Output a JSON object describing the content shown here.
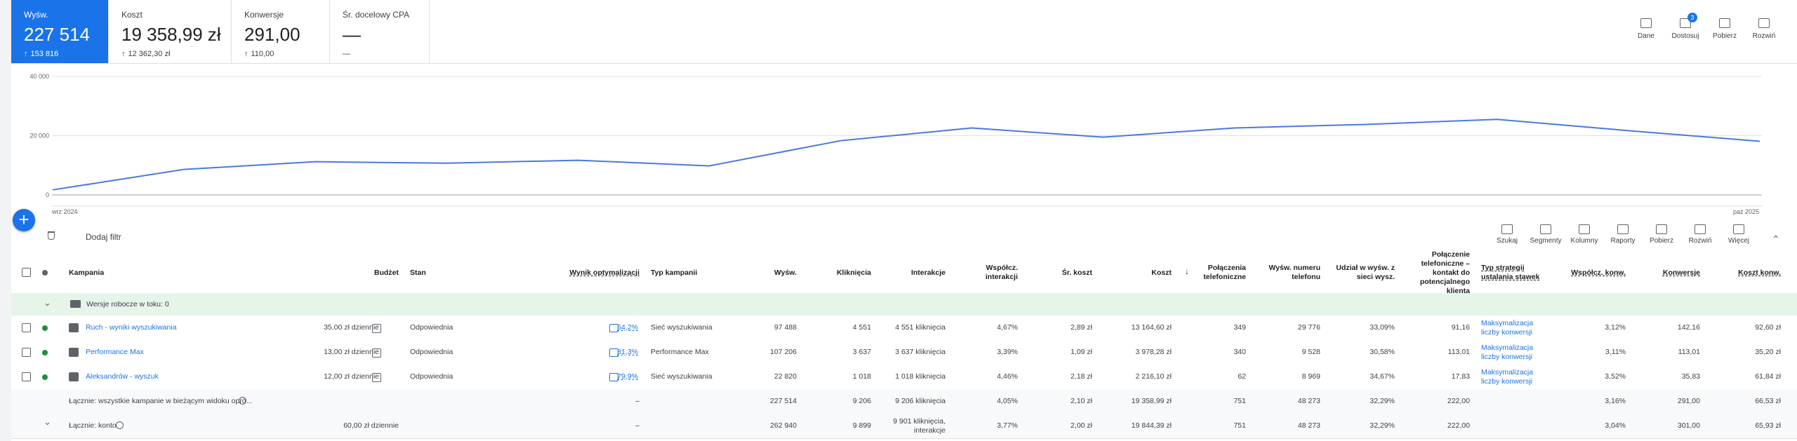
{
  "metrics": [
    {
      "label": "Wyśw.",
      "value": "227 514",
      "change": "153 816"
    },
    {
      "label": "Koszt",
      "value": "19 358,99 zł",
      "change": "12 362,30 zł"
    },
    {
      "label": "Konwersje",
      "value": "291,00",
      "change": "110,00"
    },
    {
      "label": "Śr. docelowy CPA",
      "value": "—",
      "change": "—"
    }
  ],
  "actions": [
    {
      "label": "Dane"
    },
    {
      "label": "Dostosuj",
      "badge": "3"
    },
    {
      "label": "Pobierz"
    },
    {
      "label": "Rozwiń"
    }
  ],
  "chart": {
    "type": "line",
    "categories": [
      "wrz 2024",
      null,
      null,
      null,
      null,
      null,
      null,
      null,
      null,
      null,
      null,
      null,
      null,
      "paź 2025"
    ],
    "values": [
      1700,
      8600,
      11200,
      10700,
      11700,
      9800,
      18300,
      22600,
      19500,
      22600,
      23800,
      25500,
      21700,
      18100
    ],
    "color": "#4a78e0",
    "ylim": [
      0,
      40000
    ],
    "yticks": [
      0,
      {
        "value": 20000,
        "label": "20 000"
      },
      {
        "value": 40000,
        "label": "40 000"
      }
    ],
    "grid": true
  },
  "toolbar": {
    "filter": "Dodaj filtr",
    "actions": [
      "Szukaj",
      "Segmenty",
      "Kolumny",
      "Raporty",
      "Pobierz",
      "Rozwiń",
      "Więcej"
    ]
  },
  "table": {
    "headers": {
      "name": "Kampania",
      "budget": "Budżet",
      "status": "Stan",
      "optimization": "Wynik optymalizacji",
      "type": "Typ kampanii",
      "impressions": "Wyśw.",
      "clicks": "Kliknięcia",
      "interactions": "Interakcje",
      "interaction_rate": "Współcz. interakcji",
      "avg_cost": "Śr. koszt",
      "cost": "Koszt",
      "calls": "Połączenia telefoniczne",
      "phone_impressions": "Wyśw. numeru telefonu",
      "share": "Udział w wyśw. z sieci wysz.",
      "phone_conversions": "Połączenie telefoniczne – kontakt do potencjalnego klienta",
      "strategy": "Typ strategii ustalania stawek",
      "conv_rate": "Współcz. konw.",
      "conversions": "Konwersje",
      "cost_per_conv": "Koszt konw."
    },
    "drafts": "Wersje robocze w toku: 0",
    "rows": [
      {
        "name": "Ruch - wyniki wyszukiwania",
        "budget": "35,00 zł dziennie",
        "status": "Odpowiednia",
        "optimization": "64,2%",
        "type": "Sieć wyszukiwania",
        "impressions": "97 488",
        "clicks": "4 551",
        "interactions": "4 551 kliknięcia",
        "interaction_rate": "4,67%",
        "avg_cost": "2,89 zł",
        "cost": "13 164,60 zł",
        "calls": "349",
        "phone_impressions": "29 776",
        "share": "33,09%",
        "phone_conversions": "91,16",
        "strategy": "Maksymalizacja liczby konwersji",
        "conv_rate": "3,12%",
        "conversions": "142,16",
        "cost_per_conv": "92,60 zł"
      },
      {
        "name": "Performance Max",
        "budget": "13,00 zł dziennie",
        "status": "Odpowiednia",
        "optimization": "81,3%",
        "type": "Performance Max",
        "impressions": "107 206",
        "clicks": "3 637",
        "interactions": "3 637 kliknięcia",
        "interaction_rate": "3,39%",
        "avg_cost": "1,09 zł",
        "cost": "3 978,28 zł",
        "calls": "340",
        "phone_impressions": "9 528",
        "share": "30,58%",
        "phone_conversions": "113,01",
        "strategy": "Maksymalizacja liczby konwersji",
        "conv_rate": "3,11%",
        "conversions": "113,01",
        "cost_per_conv": "35,20 zł"
      },
      {
        "name": "Aleksandrów - wyszuk",
        "budget": "12,00 zł dziennie",
        "status": "Odpowiednia",
        "optimization": "79,9%",
        "type": "Sieć wyszukiwania",
        "impressions": "22 820",
        "clicks": "1 018",
        "interactions": "1 018 kliknięcia",
        "interaction_rate": "4,46%",
        "avg_cost": "2,18 zł",
        "cost": "2 216,10 zł",
        "calls": "62",
        "phone_impressions": "8 969",
        "share": "34,67%",
        "phone_conversions": "17,83",
        "strategy": "Maksymalizacja liczby konwersji",
        "conv_rate": "3,52%",
        "conversions": "35,83",
        "cost_per_conv": "61,84 zł"
      }
    ],
    "totals": {
      "name": "Łącznie: wszystkie kampanie w bieżącym widoku opró...",
      "optimization": "–",
      "impressions": "227 514",
      "clicks": "9 206",
      "interactions": "9 206 kliknięcia",
      "interaction_rate": "4,05%",
      "avg_cost": "2,10 zł",
      "cost": "19 358,99 zł",
      "calls": "751",
      "phone_impressions": "48 273",
      "share": "32,29%",
      "phone_conversions": "222,00",
      "conv_rate": "3,16%",
      "conversions": "291,00",
      "cost_per_conv": "66,53 zł"
    },
    "account": {
      "name": "Łącznie: konto",
      "budget": "60,00 zł dziennie",
      "optimization": "–",
      "impressions": "262 940",
      "clicks": "9 899",
      "interactions": "9 901 kliknięcia, interakcje",
      "interaction_rate": "3,77%",
      "avg_cost": "2,00 zł",
      "cost": "19 844,39 zł",
      "calls": "751",
      "phone_impressions": "48 273",
      "share": "32,29%",
      "phone_conversions": "222,00",
      "conv_rate": "3,04%",
      "conversions": "301,00",
      "cost_per_conv": "65,93 zł"
    }
  }
}
